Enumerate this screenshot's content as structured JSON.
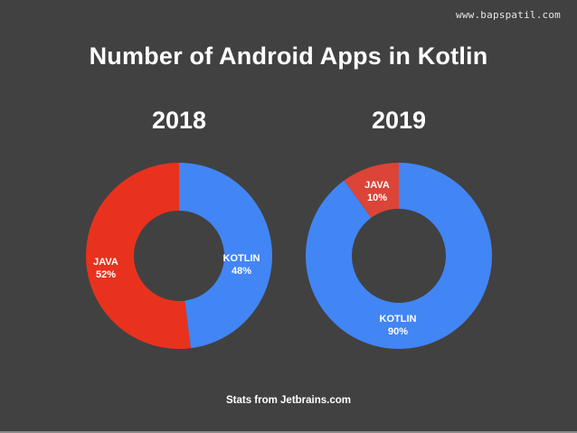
{
  "watermark": "www.bapspatil.com",
  "title": "Number of Android Apps in Kotlin",
  "footer": "Stats from Jetbrains.com",
  "colors": {
    "background": "#414141",
    "kotlin": "#4285f4",
    "java_2018": "#e8321e",
    "java_2019": "#db4437",
    "text": "#ffffff"
  },
  "charts": [
    {
      "year": "2018",
      "segments": [
        {
          "label": "KOTLIN",
          "percent_label": "48%",
          "value": 48
        },
        {
          "label": "JAVA",
          "percent_label": "52%",
          "value": 52
        }
      ]
    },
    {
      "year": "2019",
      "segments": [
        {
          "label": "KOTLIN",
          "percent_label": "90%",
          "value": 90
        },
        {
          "label": "JAVA",
          "percent_label": "10%",
          "value": 10
        }
      ]
    }
  ],
  "chart_data": [
    {
      "type": "pie",
      "subtype": "donut",
      "title": "2018",
      "categories": [
        "KOTLIN",
        "JAVA"
      ],
      "values": [
        48,
        52
      ],
      "unit": "%",
      "colors": [
        "#4285f4",
        "#e8321e"
      ],
      "legend": "none (inline labels)"
    },
    {
      "type": "pie",
      "subtype": "donut",
      "title": "2019",
      "categories": [
        "KOTLIN",
        "JAVA"
      ],
      "values": [
        90,
        10
      ],
      "unit": "%",
      "colors": [
        "#4285f4",
        "#db4437"
      ],
      "legend": "none (inline labels)"
    }
  ]
}
